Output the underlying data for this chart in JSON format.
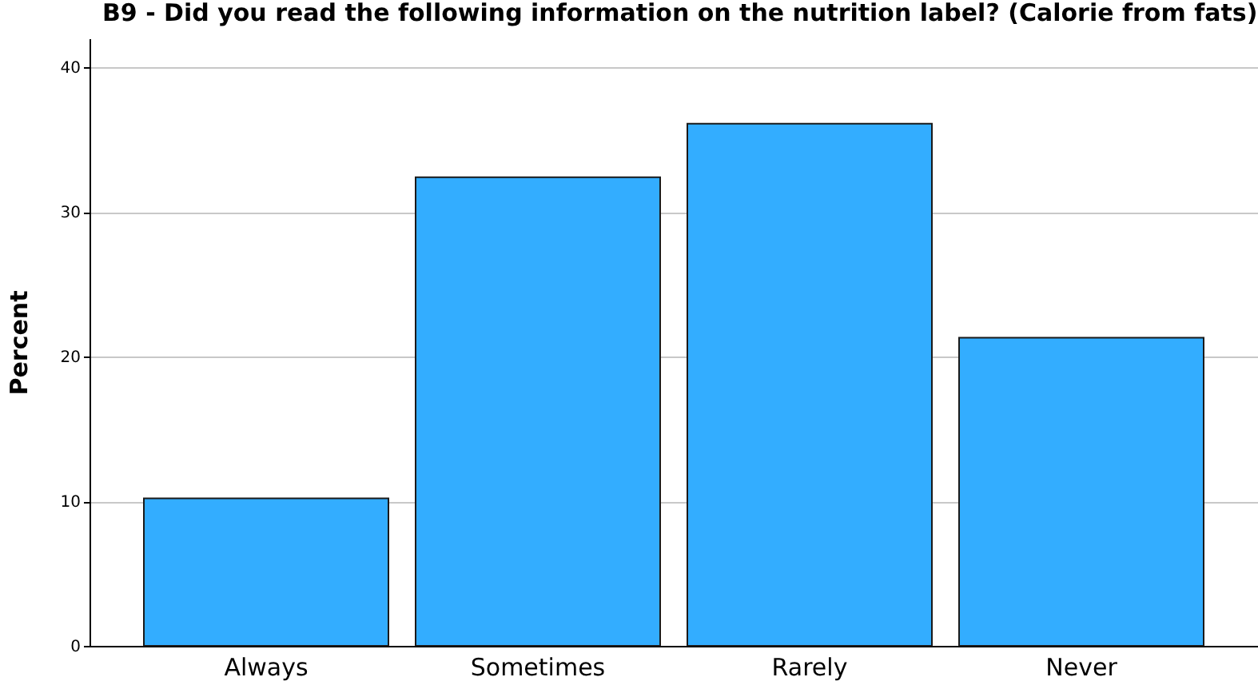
{
  "chart_data": {
    "type": "bar",
    "title": "B9 - Did you read the following information on the nutrition label? (Calorie from fats)",
    "ylabel": "Percent",
    "categories": [
      "Always",
      "Sometimes",
      "Rarely",
      "Never"
    ],
    "values": [
      10.2,
      32.4,
      36.1,
      21.3
    ],
    "color": "#33adff",
    "ylim": [
      0,
      42
    ],
    "yticks": [
      0,
      10,
      20,
      30,
      40
    ],
    "grid": "y"
  }
}
